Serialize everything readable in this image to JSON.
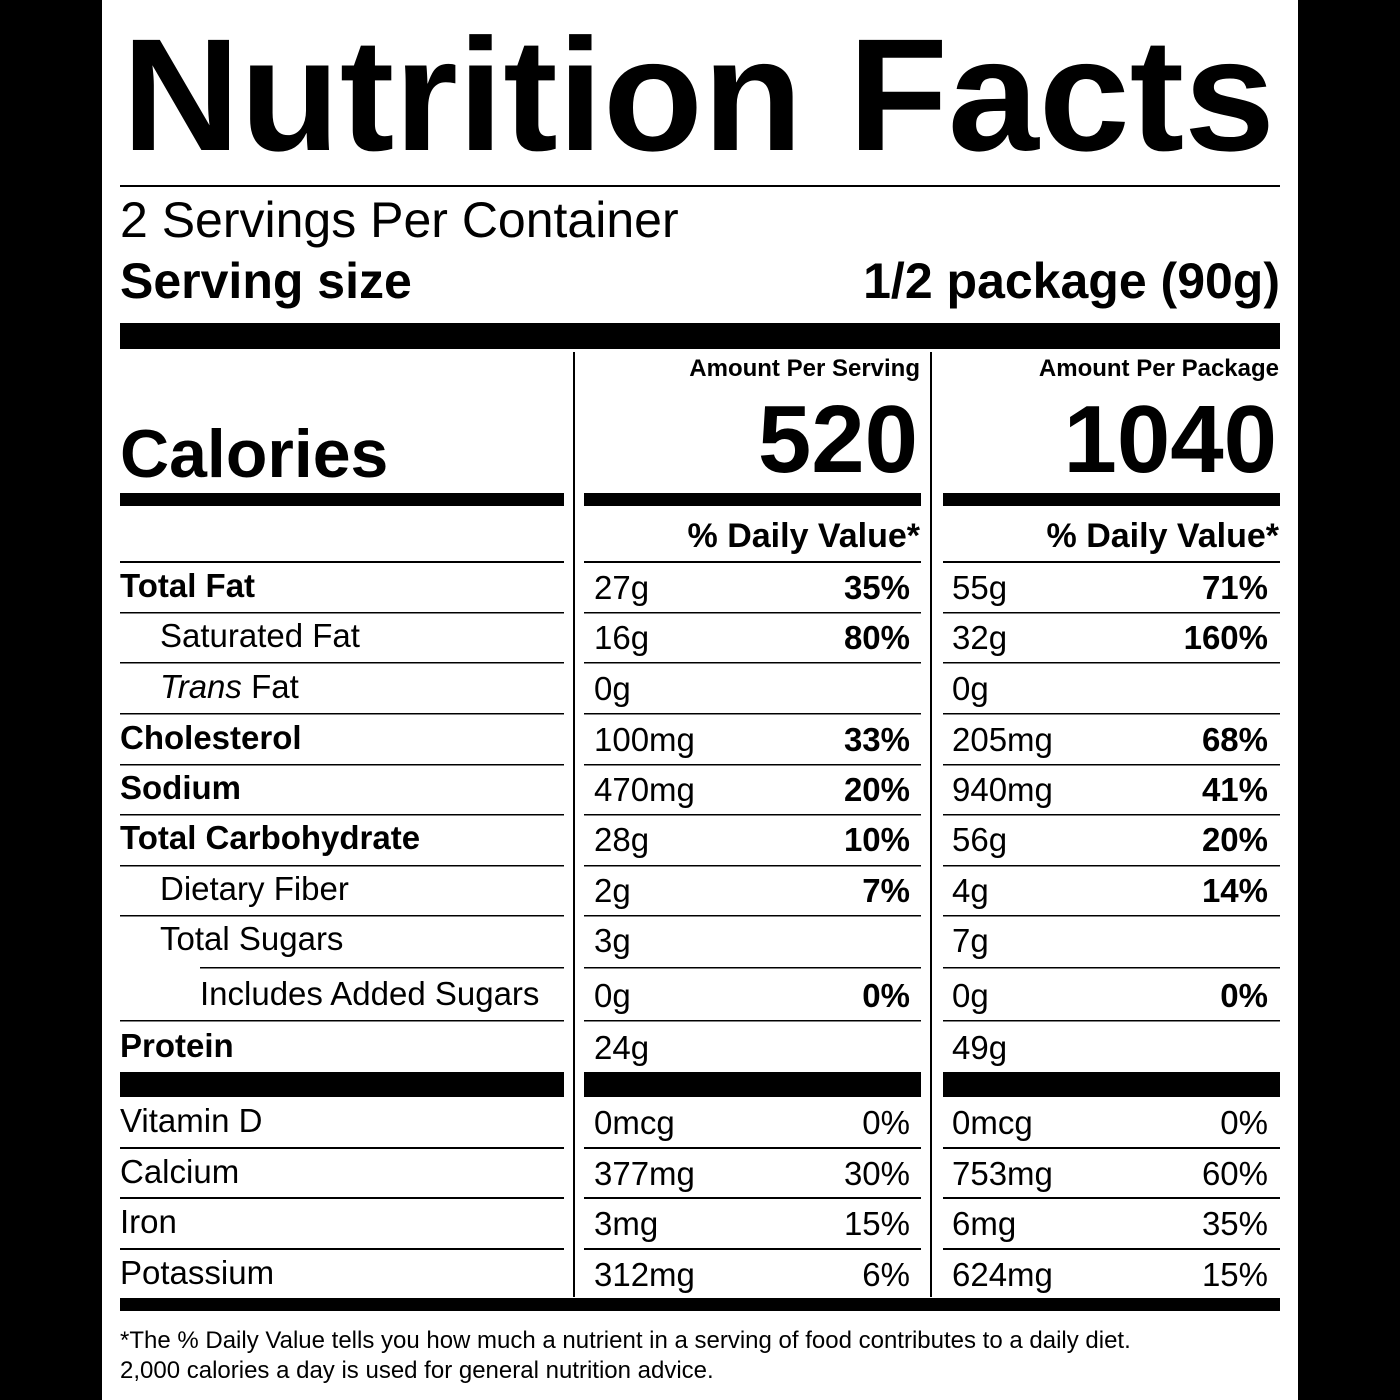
{
  "title": "Nutrition Facts",
  "servings": "2 Servings Per Container",
  "serving_size": {
    "label": "Serving size",
    "value": "1/2 package (90g)"
  },
  "calories": {
    "label": "Calories"
  },
  "columns": [
    {
      "header": "Amount Per Serving",
      "calories": "520",
      "dv_header": "% Daily Value*"
    },
    {
      "header": "Amount Per Package",
      "calories": "1040",
      "dv_header": "% Daily Value*"
    }
  ],
  "nutrients": [
    {
      "name": "Total Fat",
      "values": [
        [
          "27g",
          "35%"
        ],
        [
          "55g",
          "71%"
        ]
      ]
    },
    {
      "name": "Saturated Fat",
      "values": [
        [
          "16g",
          "80%"
        ],
        [
          "32g",
          "160%"
        ]
      ]
    },
    {
      "name_prefix": "Trans",
      "name": "Fat",
      "values": [
        [
          "0g"
        ],
        [
          "0g"
        ]
      ]
    },
    {
      "name": "Cholesterol",
      "values": [
        [
          "100mg",
          "33%"
        ],
        [
          "205mg",
          "68%"
        ]
      ]
    },
    {
      "name": "Sodium",
      "values": [
        [
          "470mg",
          "20%"
        ],
        [
          "940mg",
          "41%"
        ]
      ]
    },
    {
      "name": "Total Carbohydrate",
      "values": [
        [
          "28g",
          "10%"
        ],
        [
          "56g",
          "20%"
        ]
      ]
    },
    {
      "name": "Dietary Fiber",
      "values": [
        [
          "2g",
          "7%"
        ],
        [
          "4g",
          "14%"
        ]
      ]
    },
    {
      "name": "Total Sugars",
      "values": [
        [
          "3g"
        ],
        [
          "7g"
        ]
      ]
    },
    {
      "name": "Includes Added Sugars",
      "values": [
        [
          "0g",
          "0%"
        ],
        [
          "0g",
          "0%"
        ]
      ]
    },
    {
      "name": "Protein",
      "values": [
        [
          "24g"
        ],
        [
          "49g"
        ]
      ]
    }
  ],
  "vitamins": [
    {
      "name": "Vitamin D",
      "values": [
        [
          "0mcg",
          "0%"
        ],
        [
          "0mcg",
          "0%"
        ]
      ]
    },
    {
      "name": "Calcium",
      "values": [
        [
          "377mg",
          "30%"
        ],
        [
          "753mg",
          "60%"
        ]
      ]
    },
    {
      "name": "Iron",
      "values": [
        [
          "3mg",
          "15%"
        ],
        [
          "6mg",
          "35%"
        ]
      ]
    },
    {
      "name": "Potassium",
      "values": [
        [
          "312mg",
          "6%"
        ],
        [
          "624mg",
          "15%"
        ]
      ]
    }
  ],
  "footnote": [
    "*The % Daily Value tells you how much a nutrient in a serving of food contributes to a daily diet.",
    "2,000 calories a day is used for general nutrition advice."
  ]
}
